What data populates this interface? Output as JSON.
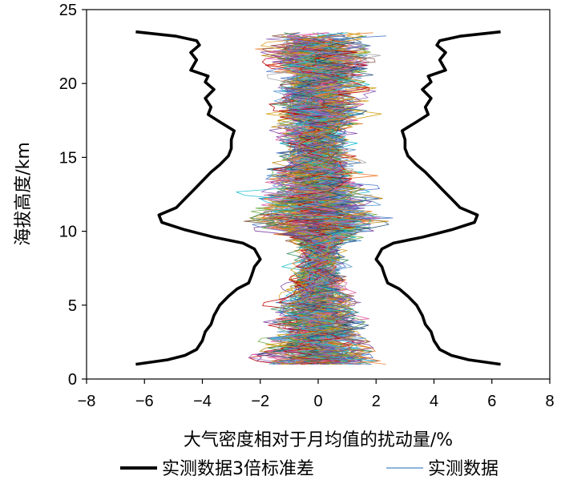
{
  "chart_data": {
    "type": "line",
    "title": "",
    "xlabel": "大气密度相对于月均值的扰动量/%",
    "ylabel": "海拔高度/km",
    "xlim": [
      -8,
      8
    ],
    "ylim": [
      0,
      25
    ],
    "x_ticks": [
      "−8",
      "−6",
      "−4",
      "−2",
      "0",
      "2",
      "4",
      "6",
      "8"
    ],
    "y_ticks": [
      "0",
      "5",
      "10",
      "15",
      "20",
      "25"
    ],
    "grid": false,
    "legend_position": "bottom",
    "series": [
      {
        "name": "实测数据3倍标准差",
        "color": "#000000",
        "style": "thick-black-symmetric",
        "points": [
          [
            6.3,
            1.0
          ],
          [
            5.2,
            1.3
          ],
          [
            4.6,
            1.6
          ],
          [
            4.2,
            2.0
          ],
          [
            4.0,
            2.6
          ],
          [
            3.9,
            3.2
          ],
          [
            3.7,
            3.7
          ],
          [
            3.6,
            4.3
          ],
          [
            3.4,
            5.0
          ],
          [
            3.1,
            5.6
          ],
          [
            2.8,
            6.1
          ],
          [
            2.4,
            6.5
          ],
          [
            2.3,
            7.0
          ],
          [
            2.2,
            7.6
          ],
          [
            2.0,
            8.1
          ],
          [
            2.2,
            8.8
          ],
          [
            2.6,
            9.2
          ],
          [
            3.6,
            9.6
          ],
          [
            4.6,
            10.1
          ],
          [
            5.4,
            10.6
          ],
          [
            5.5,
            11.1
          ],
          [
            4.9,
            11.6
          ],
          [
            4.6,
            12.2
          ],
          [
            4.3,
            12.8
          ],
          [
            4.0,
            13.4
          ],
          [
            3.7,
            14.0
          ],
          [
            3.4,
            14.5
          ],
          [
            3.1,
            15.1
          ],
          [
            3.0,
            15.6
          ],
          [
            3.0,
            16.2
          ],
          [
            2.9,
            16.8
          ],
          [
            3.4,
            17.4
          ],
          [
            3.8,
            17.9
          ],
          [
            3.7,
            18.4
          ],
          [
            3.9,
            19.0
          ],
          [
            3.6,
            19.6
          ],
          [
            3.9,
            20.1
          ],
          [
            3.8,
            20.5
          ],
          [
            4.4,
            20.9
          ],
          [
            4.2,
            21.6
          ],
          [
            4.4,
            22.1
          ],
          [
            4.1,
            22.6
          ],
          [
            4.2,
            22.9
          ],
          [
            4.9,
            23.2
          ],
          [
            6.3,
            23.5
          ]
        ]
      },
      {
        "name": "实测数据",
        "color": "#4c86c6",
        "style": "thin-many-colored-profiles",
        "palette": [
          "#4472c4",
          "#ed7d31",
          "#a5a5a5",
          "#d4a017",
          "#5b9bd5",
          "#70ad47",
          "#7b3fa0",
          "#c00000",
          "#2e8b57",
          "#e060a0",
          "#1f4e79",
          "#b8860b",
          "#17becf",
          "#9467bd",
          "#8c564b"
        ]
      }
    ]
  }
}
